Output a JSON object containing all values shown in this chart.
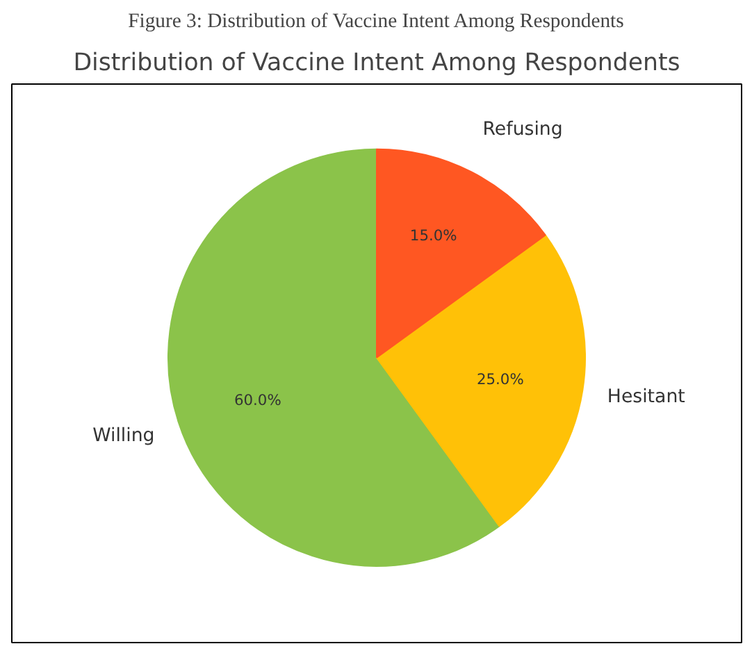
{
  "chart_data": {
    "type": "pie",
    "title": "Figure 3: Distribution of Vaccine Intent Among Respondents",
    "subtitle": "Distribution of Vaccine Intent Among Respondents",
    "categories": [
      "Willing",
      "Hesitant",
      "Refusing"
    ],
    "values": [
      60,
      25,
      15
    ],
    "colors": [
      "#8bc34a",
      "#ffc107",
      "#ff5722"
    ],
    "value_labels": [
      "60.0%",
      "25.0%",
      "15.0%"
    ]
  }
}
